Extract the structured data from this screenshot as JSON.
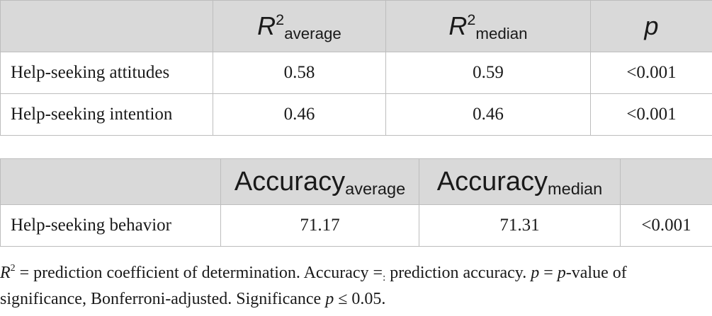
{
  "table1": {
    "headers": [
      {
        "sym": "",
        "sup": "",
        "sub": ""
      },
      {
        "sym": "R",
        "sup": "2",
        "sub": "average"
      },
      {
        "sym": "R",
        "sup": "2",
        "sub": "median"
      },
      {
        "sym": "p",
        "sup": "",
        "sub": ""
      }
    ],
    "rows": [
      {
        "label": "Help-seeking attitudes",
        "r2_average": "0.58",
        "r2_median": "0.59",
        "p": "<0.001"
      },
      {
        "label": "Help-seeking intention",
        "r2_average": "0.46",
        "r2_median": "0.46",
        "p": "<0.001"
      }
    ]
  },
  "table2": {
    "headers": [
      {
        "sym": "",
        "sub": ""
      },
      {
        "sym": "Accuracy",
        "sub": "average"
      },
      {
        "sym": "Accuracy",
        "sub": "median"
      },
      {
        "sym": "",
        "sub": ""
      }
    ],
    "rows": [
      {
        "label": "Help-seeking behavior",
        "acc_average": "71.17",
        "acc_median": "71.31",
        "p": "<0.001"
      }
    ]
  },
  "note": {
    "r": "R",
    "r_sup": "2",
    "part1": " = prediction coefficient of determination. Accuracy =",
    "part1_sub": ":",
    "part2": " prediction accuracy. ",
    "p1": "p",
    "part3": " = ",
    "p2": "p",
    "part4": "-value of significance, Bonferroni-adjusted. Significance ",
    "p3": "p",
    "part5": " ≤ 0.05."
  }
}
